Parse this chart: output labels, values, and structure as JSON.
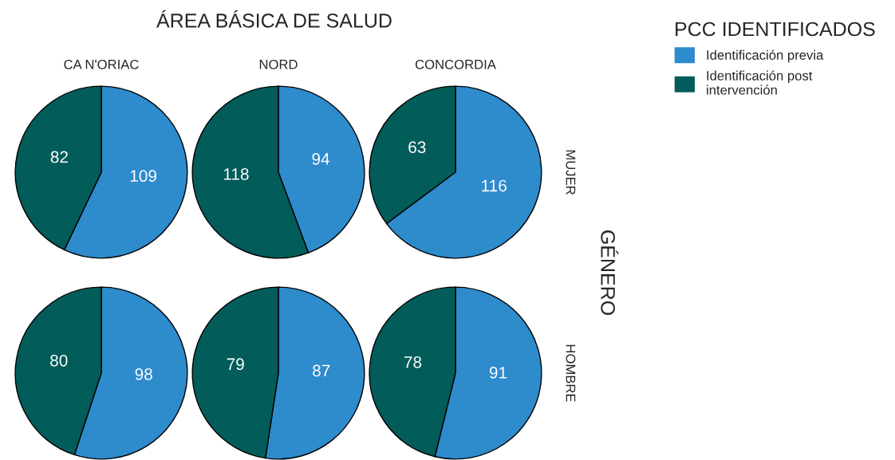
{
  "chart_data": [
    {
      "type": "pie",
      "title": "CA N'ORIAC",
      "annotations": [
        "ÁREA BÁSICA DE SALUD",
        "GÉNERO"
      ],
      "legend_title": "PCC IDENTIFICADOS",
      "legend": "right",
      "categories": [
        "Identificación previa",
        "Identificación post intervención"
      ],
      "values": [
        109,
        82
      ],
      "colors": [
        "#2e8bcc",
        "#025c5a"
      ],
      "data_labels": true
    },
    {
      "type": "pie",
      "title": "NORD",
      "values": [
        94,
        118
      ],
      "colors": [
        "#2e8bcc",
        "#025c5a"
      ],
      "data_labels": true
    },
    {
      "type": "pie",
      "title": "CONCORDIA",
      "y2label": "MUJER",
      "values": [
        116,
        63
      ],
      "colors": [
        "#2e8bcc",
        "#025c5a"
      ],
      "data_labels": true
    },
    {
      "type": "pie",
      "values": [
        98,
        80
      ],
      "colors": [
        "#2e8bcc",
        "#025c5a"
      ],
      "data_labels": true
    },
    {
      "type": "pie",
      "values": [
        87,
        79
      ],
      "colors": [
        "#2e8bcc",
        "#025c5a"
      ],
      "data_labels": true
    },
    {
      "type": "pie",
      "y2label": "HOMBRE",
      "values": [
        91,
        78
      ],
      "colors": [
        "#2e8bcc",
        "#025c5a"
      ],
      "data_labels": true
    }
  ]
}
